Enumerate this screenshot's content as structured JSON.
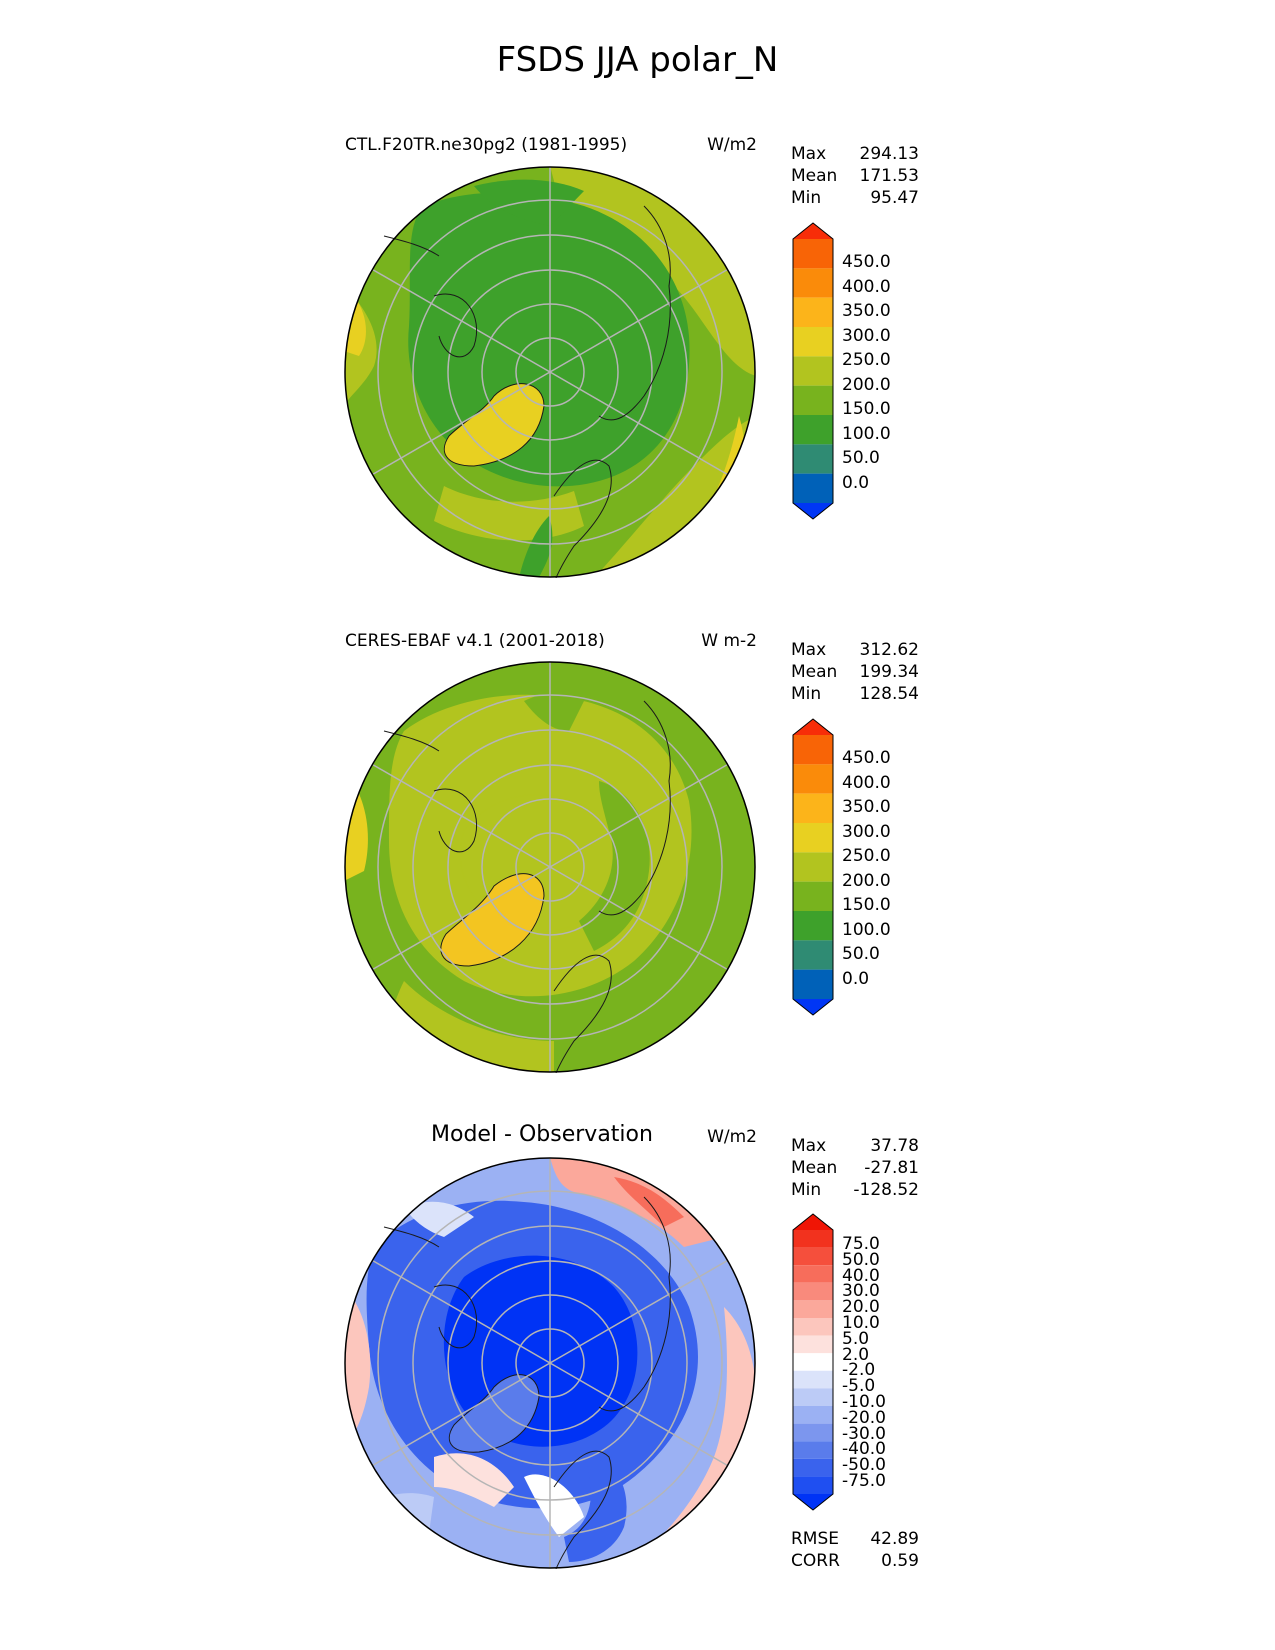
{
  "figure": {
    "title": "FSDS JJA polar_N"
  },
  "colors": {
    "abs_palette": [
      "#0036f5",
      "#0061b8",
      "#2f8b73",
      "#3ea12b",
      "#78b31e",
      "#b2c41f",
      "#e8d021",
      "#fcb41a",
      "#fa8b0a",
      "#f86406",
      "#f72d08"
    ],
    "diff_palette": [
      "#0033f5",
      "#1f4ff1",
      "#3a63ed",
      "#5a7ceb",
      "#7c96ee",
      "#9bb1f3",
      "#bccbf6",
      "#dbe3fa",
      "#ffffff",
      "#fde1dd",
      "#fcc6bd",
      "#fba89b",
      "#f98a7c",
      "#f76d5b",
      "#f54f3c",
      "#f2321e",
      "#f01505"
    ],
    "grid": "#b5b5b5",
    "coast": "#1a1a1a"
  },
  "panels": [
    {
      "id": "model",
      "title": "CTL.F20TR.ne30pg2 (1981-1995)",
      "units": "W/m2",
      "stats": [
        {
          "label": "Max",
          "value": "294.13"
        },
        {
          "label": "Mean",
          "value": "171.53"
        },
        {
          "label": "Min",
          "value": "95.47"
        }
      ],
      "colorbar_ticks": [
        "450.0",
        "400.0",
        "350.0",
        "300.0",
        "250.0",
        "200.0",
        "150.0",
        "100.0",
        "50.0",
        "0.0"
      ]
    },
    {
      "id": "obs",
      "title": "CERES-EBAF v4.1 (2001-2018)",
      "units": "W m-2",
      "stats": [
        {
          "label": "Max",
          "value": "312.62"
        },
        {
          "label": "Mean",
          "value": "199.34"
        },
        {
          "label": "Min",
          "value": "128.54"
        }
      ],
      "colorbar_ticks": [
        "450.0",
        "400.0",
        "350.0",
        "300.0",
        "250.0",
        "200.0",
        "150.0",
        "100.0",
        "50.0",
        "0.0"
      ]
    },
    {
      "id": "diff",
      "title": "Model - Observation",
      "units": "W/m2",
      "stats": [
        {
          "label": "Max",
          "value": "37.78"
        },
        {
          "label": "Mean",
          "value": "-27.81"
        },
        {
          "label": "Min",
          "value": "-128.52"
        }
      ],
      "colorbar_ticks": [
        "75.0",
        "50.0",
        "40.0",
        "30.0",
        "20.0",
        "10.0",
        "5.0",
        "2.0",
        "-2.0",
        "-5.0",
        "-10.0",
        "-20.0",
        "-30.0",
        "-40.0",
        "-50.0",
        "-75.0"
      ],
      "metrics": [
        {
          "label": "RMSE",
          "value": "42.89"
        },
        {
          "label": "CORR",
          "value": "0.59"
        }
      ]
    }
  ],
  "chart_data": [
    {
      "type": "heatmap",
      "title": "CTL.F20TR.ne30pg2 (1981-1995)",
      "projection": "north polar stereographic",
      "variable": "FSDS",
      "season": "JJA",
      "units": "W/m2",
      "levels": [
        0,
        50,
        100,
        150,
        200,
        250,
        300,
        350,
        400,
        450
      ],
      "stats": {
        "max": 294.13,
        "mean": 171.53,
        "min": 95.47
      }
    },
    {
      "type": "heatmap",
      "title": "CERES-EBAF v4.1 (2001-2018)",
      "projection": "north polar stereographic",
      "variable": "FSDS",
      "season": "JJA",
      "units": "W m-2",
      "levels": [
        0,
        50,
        100,
        150,
        200,
        250,
        300,
        350,
        400,
        450
      ],
      "stats": {
        "max": 312.62,
        "mean": 199.34,
        "min": 128.54
      }
    },
    {
      "type": "heatmap",
      "title": "Model - Observation",
      "projection": "north polar stereographic",
      "units": "W/m2",
      "levels": [
        -75,
        -50,
        -40,
        -30,
        -20,
        -10,
        -5,
        -2,
        2,
        5,
        10,
        20,
        30,
        40,
        50,
        75
      ],
      "stats": {
        "max": 37.78,
        "mean": -27.81,
        "min": -128.52
      },
      "metrics": {
        "rmse": 42.89,
        "corr": 0.59
      }
    }
  ]
}
